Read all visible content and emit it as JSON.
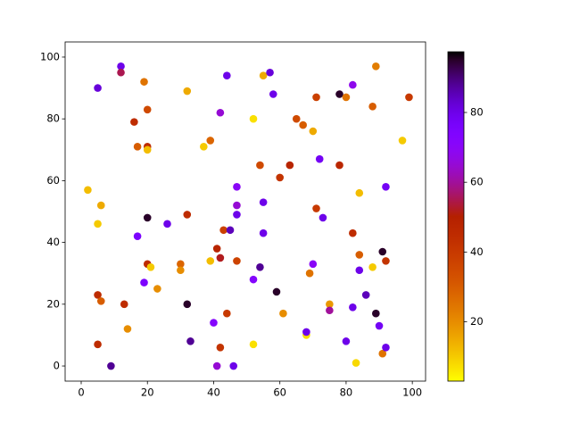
{
  "chart_data": {
    "type": "scatter",
    "x": [
      12,
      12,
      5,
      19,
      32,
      44,
      55,
      57,
      20,
      16,
      42,
      58,
      71,
      78,
      80,
      82,
      89,
      99,
      52,
      65,
      67,
      70,
      88,
      97,
      17,
      20,
      20,
      39,
      37,
      2,
      6,
      5,
      20,
      26,
      32,
      17,
      54,
      60,
      63,
      47,
      47,
      47,
      55,
      72,
      78,
      71,
      73,
      84,
      92,
      43,
      45,
      55,
      41,
      42,
      39,
      47,
      20,
      21,
      30,
      30,
      54,
      52,
      70,
      69,
      84,
      82,
      91,
      92,
      84,
      88,
      19,
      23,
      5,
      6,
      13,
      32,
      59,
      61,
      75,
      75,
      82,
      86,
      89,
      90,
      14,
      40,
      44,
      68,
      68,
      5,
      33,
      52,
      42,
      80,
      83,
      91,
      92,
      9,
      41,
      46
    ],
    "y": [
      97,
      95,
      90,
      92,
      89,
      94,
      94,
      95,
      83,
      79,
      82,
      88,
      87,
      88,
      87,
      91,
      97,
      87,
      80,
      80,
      78,
      76,
      84,
      73,
      71,
      71,
      70,
      73,
      71,
      57,
      52,
      46,
      48,
      46,
      49,
      42,
      65,
      61,
      65,
      58,
      52,
      49,
      53,
      67,
      65,
      51,
      48,
      56,
      58,
      44,
      44,
      43,
      38,
      35,
      34,
      34,
      33,
      32,
      33,
      31,
      32,
      28,
      33,
      30,
      36,
      43,
      37,
      34,
      31,
      32,
      27,
      25,
      23,
      21,
      20,
      20,
      24,
      17,
      20,
      18,
      19,
      23,
      17,
      13,
      12,
      14,
      17,
      10,
      11,
      7,
      8,
      7,
      6,
      8,
      1,
      4,
      6,
      0,
      0,
      0
    ],
    "c": [
      80,
      55,
      82,
      25,
      15,
      80,
      15,
      82,
      35,
      45,
      65,
      80,
      38,
      95,
      25,
      68,
      23,
      40,
      7,
      35,
      30,
      15,
      30,
      10,
      30,
      45,
      12,
      28,
      10,
      12,
      15,
      10,
      95,
      80,
      45,
      75,
      35,
      42,
      48,
      70,
      65,
      80,
      80,
      78,
      47,
      40,
      80,
      12,
      78,
      38,
      85,
      80,
      48,
      52,
      12,
      37,
      45,
      10,
      28,
      20,
      88,
      72,
      70,
      25,
      30,
      45,
      95,
      42,
      80,
      10,
      75,
      20,
      45,
      30,
      45,
      95,
      95,
      20,
      18,
      60,
      80,
      85,
      95,
      78,
      20,
      72,
      40,
      7,
      80,
      45,
      88,
      7,
      42,
      80,
      8,
      25,
      80,
      88,
      65,
      80
    ],
    "xlim": [
      -4.85,
      104
    ],
    "ylim": [
      -4.9,
      104.9
    ],
    "xticks": [
      0,
      20,
      40,
      60,
      80,
      100
    ],
    "yticks": [
      0,
      20,
      40,
      60,
      80,
      100
    ],
    "colormap": "gnuplot_r",
    "clim": [
      3,
      97.4
    ],
    "cticks": [
      20,
      40,
      60,
      80
    ]
  }
}
